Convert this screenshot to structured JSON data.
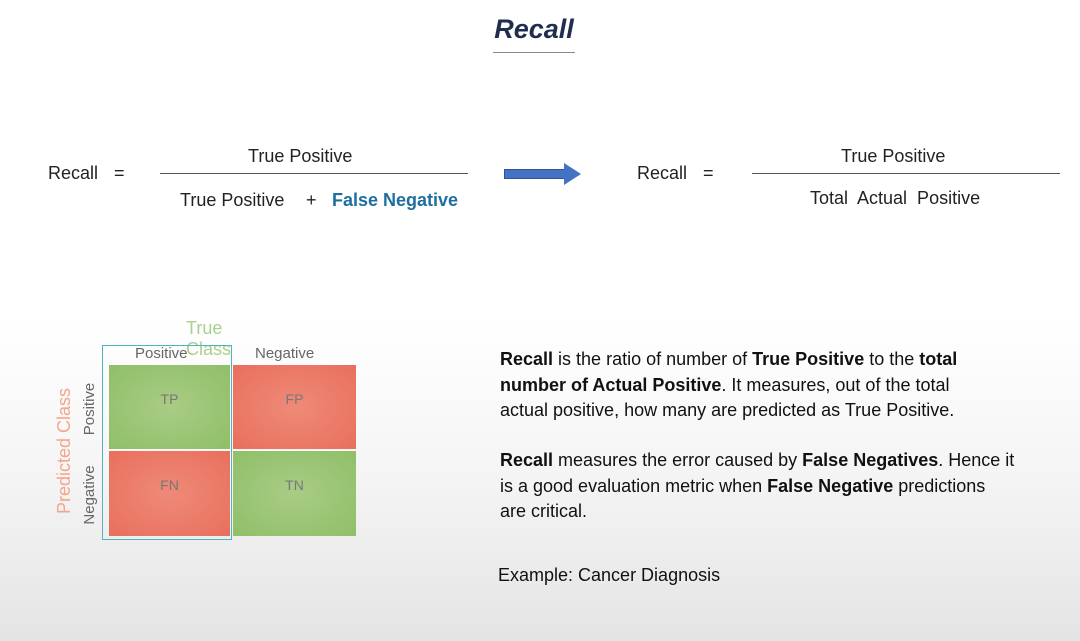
{
  "title": "Recall",
  "formula_left": {
    "lhs": "Recall",
    "equals": "=",
    "numerator": "True Positive",
    "denominator_a": "True Positive",
    "plus": "+",
    "denominator_b": "False Negative"
  },
  "formula_right": {
    "lhs": "Recall",
    "equals": "=",
    "numerator": "True Positive",
    "denominator": "Total  Actual  Positive"
  },
  "colors": {
    "title": "#1f2e4e",
    "arrow": "#4472c4",
    "false_negative_text": "#1e6fa0",
    "cell_green": "#8fbf68",
    "cell_red": "#e86f5c",
    "true_class_label": "#a9d18e",
    "predicted_class_label": "#f4a58a",
    "highlight_border": "#4fb4c0"
  },
  "matrix": {
    "true_class_label": "True Class",
    "predicted_class_label": "Predicted Class",
    "columns": [
      "Positive",
      "Negative"
    ],
    "rows": [
      "Positive",
      "Negative"
    ],
    "cells": {
      "tp": "TP",
      "fp": "FP",
      "fn": "FN",
      "tn": "TN"
    }
  },
  "description": {
    "p1": {
      "s1": "Recall",
      "s2": " is the ratio of number of ",
      "s3": "True Positive",
      "s4": " to the ",
      "s5": "total",
      "s6": "number of Actual Positive",
      "s7": ". It measures, out of the total",
      "s8": "actual positive, how many are predicted as True Positive."
    },
    "p2": {
      "s1": "Recall",
      "s2": " measures the error caused by ",
      "s3": "False Negatives",
      "s4": ". Hence it",
      "s5": "is a good evaluation metric when ",
      "s6": "False Negative",
      "s7": " predictions",
      "s8": "are critical."
    },
    "example": "Example: Cancer Diagnosis"
  }
}
